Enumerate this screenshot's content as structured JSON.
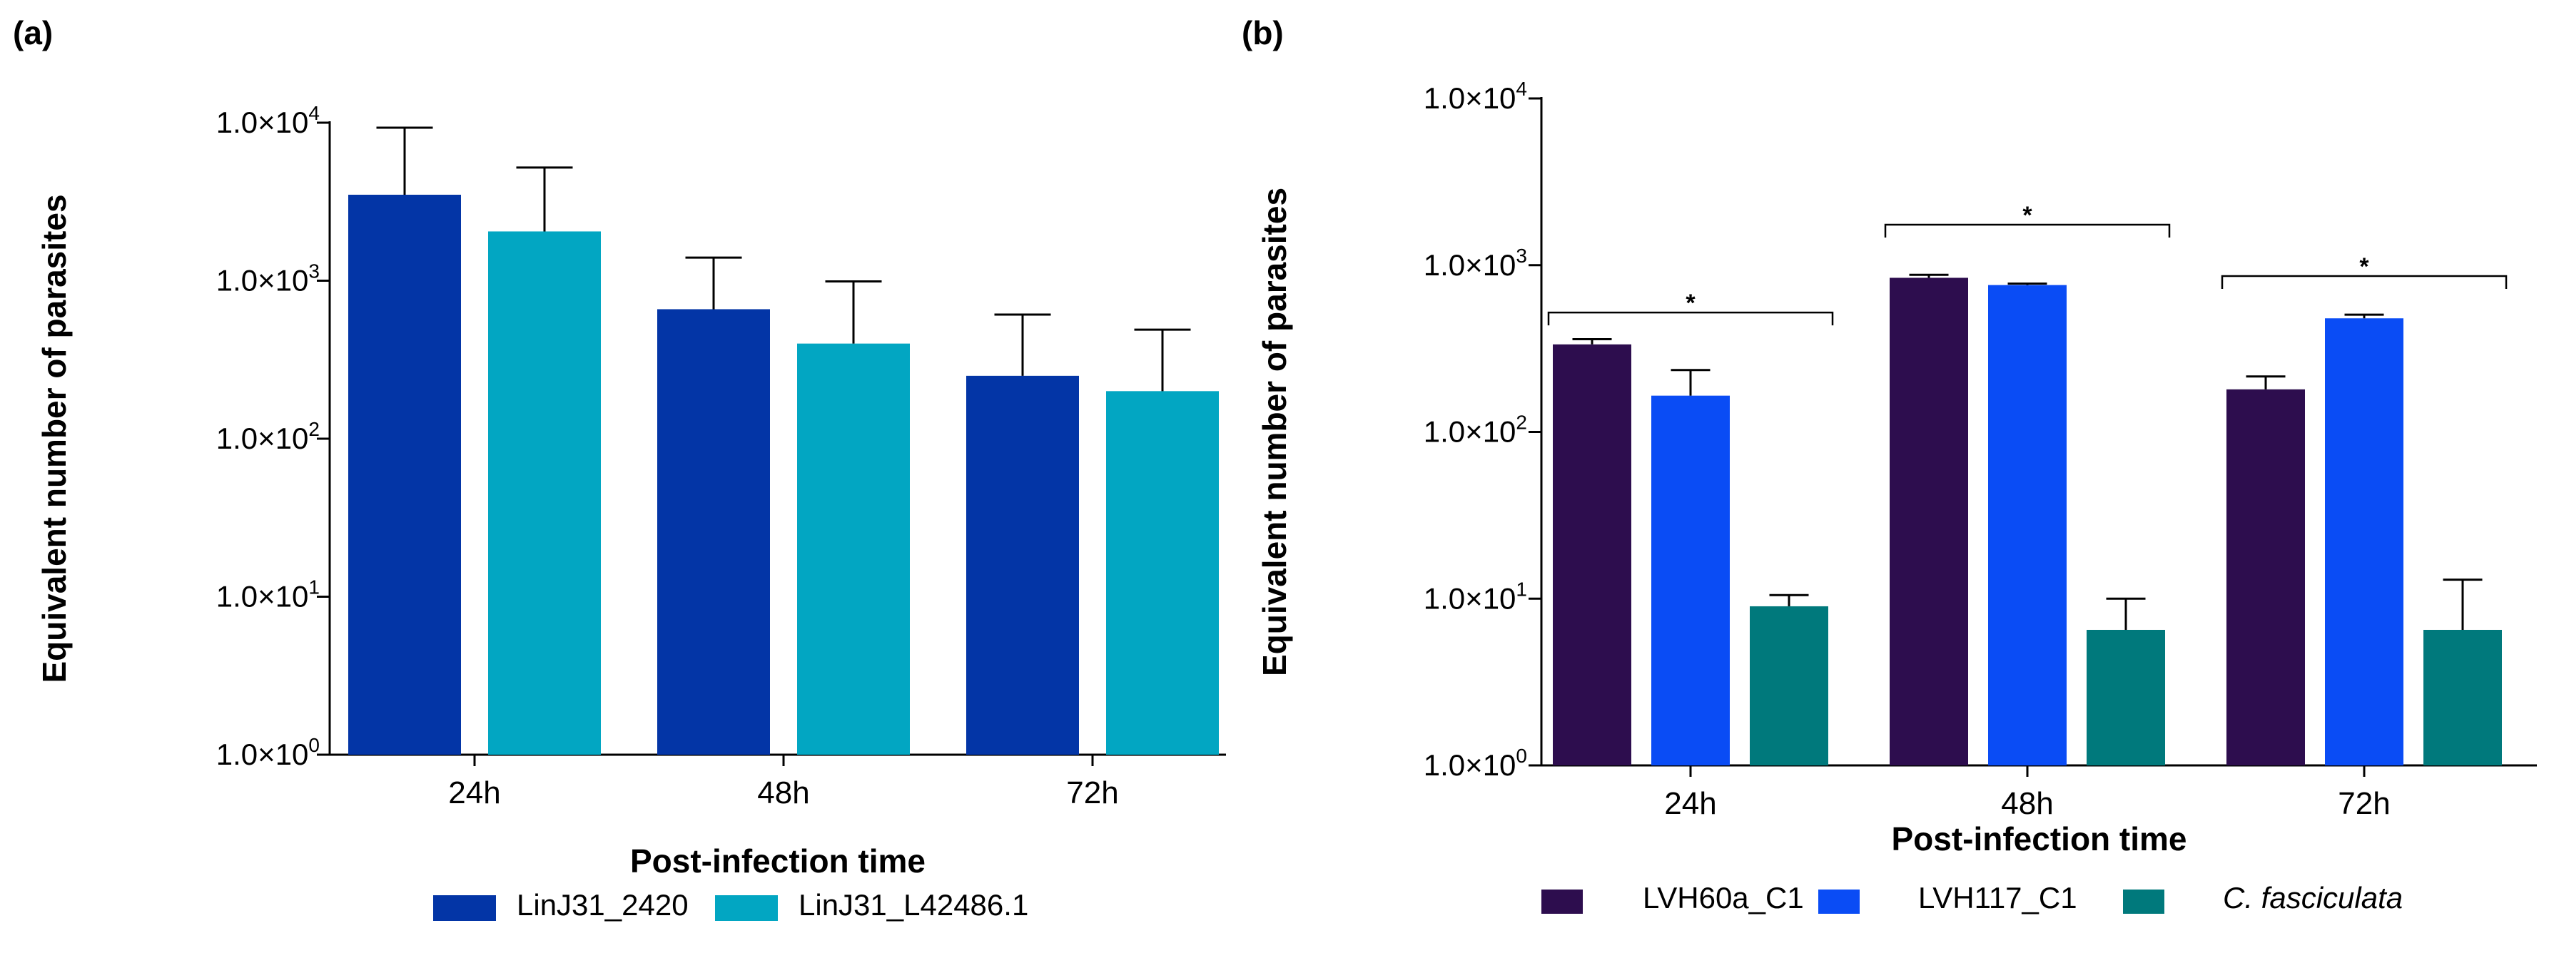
{
  "chart_data": [
    {
      "panel_label": "(a)",
      "type": "bar",
      "yscale": "log",
      "categories": [
        "24h",
        "48h",
        "72h"
      ],
      "series": [
        {
          "name": "LinJ31_2420",
          "color": "#0335a6",
          "values": [
            3500,
            660,
            250
          ],
          "errors": [
            5800,
            740,
            360
          ]
        },
        {
          "name": "LinJ31_L42486.1",
          "color": "#02a6c2",
          "values": [
            2050,
            400,
            200
          ],
          "errors": [
            3150,
            590,
            290
          ]
        }
      ],
      "ylim": [
        1,
        10000
      ],
      "ytick_labels": [
        {
          "base": "1.0×10",
          "exp": "0"
        },
        {
          "base": "1.0×10",
          "exp": "1"
        },
        {
          "base": "1.0×10",
          "exp": "2"
        },
        {
          "base": "1.0×10",
          "exp": "3"
        },
        {
          "base": "1.0×10",
          "exp": "4"
        }
      ],
      "xlabel": "Post-infection time",
      "ylabel": "Equivalent number of parasites",
      "significance": []
    },
    {
      "panel_label": "(b)",
      "type": "bar",
      "yscale": "log",
      "categories": [
        "24h",
        "48h",
        "72h"
      ],
      "series": [
        {
          "name": "LVH60a_C1",
          "color": "#2d0d4e",
          "italic": false,
          "values": [
            335,
            840,
            180
          ],
          "errors": [
            25,
            35,
            35
          ]
        },
        {
          "name": "LVH117_C1",
          "color": "#0a4cf5",
          "italic": false,
          "values": [
            165,
            760,
            480
          ],
          "errors": [
            70,
            15,
            25
          ]
        },
        {
          "name": "C. fasciculata",
          "color": "#00797c",
          "italic": true,
          "values": [
            9,
            6.5,
            6.5
          ],
          "errors": [
            1.5,
            3.5,
            6.5
          ]
        }
      ],
      "ylim": [
        1,
        10000
      ],
      "ytick_labels": [
        {
          "base": "1.0×10",
          "exp": "0"
        },
        {
          "base": "1.0×10",
          "exp": "1"
        },
        {
          "base": "1.0×10",
          "exp": "2"
        },
        {
          "base": "1.0×10",
          "exp": "3"
        },
        {
          "base": "1.0×10",
          "exp": "4"
        }
      ],
      "xlabel": "Post-infection time",
      "ylabel": "Equivalent number of parasites",
      "significance": [
        {
          "category": "24h",
          "value": 520,
          "label": "*"
        },
        {
          "category": "48h",
          "value": 1750,
          "label": "*"
        },
        {
          "category": "72h",
          "value": 860,
          "label": "*"
        }
      ]
    }
  ]
}
